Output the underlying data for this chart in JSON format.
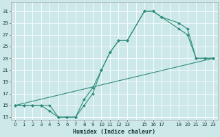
{
  "xlabel": "Humidex (Indice chaleur)",
  "xlim": [
    -0.5,
    23.5
  ],
  "ylim": [
    12.5,
    32.5
  ],
  "xticks": [
    0,
    1,
    2,
    3,
    4,
    5,
    6,
    7,
    8,
    9,
    10,
    11,
    12,
    13,
    15,
    16,
    17,
    19,
    20,
    21,
    22,
    23
  ],
  "xgrid": [
    0,
    1,
    2,
    3,
    4,
    5,
    6,
    7,
    8,
    9,
    10,
    11,
    12,
    13,
    14,
    15,
    16,
    17,
    18,
    19,
    20,
    21,
    22,
    23
  ],
  "yticks": [
    13,
    15,
    17,
    19,
    21,
    23,
    25,
    27,
    29,
    31
  ],
  "bg_color": "#cce8e8",
  "line_color": "#2d8b7a",
  "grid_color": "#ffffff",
  "lines": [
    {
      "x": [
        0,
        1,
        2,
        3,
        4,
        5,
        6,
        7,
        8,
        9,
        10,
        11,
        12,
        13,
        15,
        16,
        17,
        19,
        20,
        21,
        22,
        23
      ],
      "y": [
        15,
        15,
        15,
        15,
        15,
        13,
        13,
        13,
        15,
        17,
        21,
        24,
        26,
        26,
        31,
        31,
        30,
        28,
        27,
        23,
        23,
        23
      ]
    },
    {
      "x": [
        0,
        1,
        2,
        3,
        4,
        5,
        6,
        7,
        8,
        9,
        10,
        11,
        12,
        13,
        15,
        16,
        17,
        19,
        20,
        21,
        22,
        23
      ],
      "y": [
        15,
        15,
        15,
        15,
        14,
        13,
        13,
        13,
        16,
        18,
        21,
        24,
        26,
        26,
        31,
        31,
        30,
        29,
        28,
        23,
        23,
        23
      ]
    },
    {
      "x": [
        0,
        23
      ],
      "y": [
        15,
        23
      ]
    }
  ]
}
